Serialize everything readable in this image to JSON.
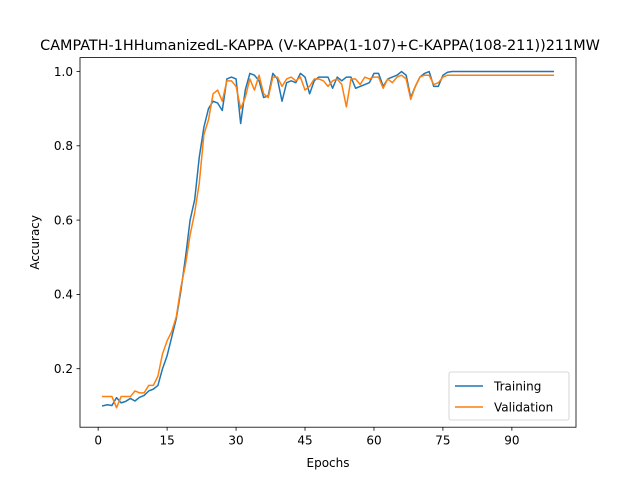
{
  "chart_data": {
    "type": "line",
    "title": "CAMPATH-1HHumanizedL-KAPPA (V-KAPPA(1-107)+C-KAPPA(108-211))211MW",
    "xlabel": "Epochs",
    "ylabel": "Accuracy",
    "xlim": [
      -3.95,
      103.95
    ],
    "ylim": [
      0.0425,
      1.0375
    ],
    "xticks": [
      0,
      15,
      30,
      45,
      60,
      75,
      90
    ],
    "yticks": [
      0.2,
      0.4,
      0.6,
      0.8,
      1.0
    ],
    "legend_position": "lower-right",
    "grid": false,
    "series": [
      {
        "name": "Training",
        "color": "#1f77b4",
        "x": [
          1,
          2,
          3,
          4,
          5,
          6,
          7,
          8,
          9,
          10,
          11,
          12,
          13,
          14,
          15,
          16,
          17,
          18,
          19,
          20,
          21,
          22,
          23,
          24,
          25,
          26,
          27,
          28,
          29,
          30,
          31,
          32,
          33,
          34,
          35,
          36,
          37,
          38,
          39,
          40,
          41,
          42,
          43,
          44,
          45,
          46,
          47,
          48,
          49,
          50,
          51,
          52,
          53,
          54,
          55,
          56,
          57,
          58,
          59,
          60,
          61,
          62,
          63,
          64,
          65,
          66,
          67,
          68,
          69,
          70,
          71,
          72,
          73,
          74,
          75,
          76,
          77,
          78,
          79,
          80,
          81,
          82,
          83,
          84,
          85,
          86,
          87,
          88,
          89,
          90,
          91,
          92,
          93,
          94,
          95,
          96,
          97,
          98,
          99
        ],
        "values": [
          0.1,
          0.103,
          0.101,
          0.122,
          0.108,
          0.112,
          0.12,
          0.113,
          0.123,
          0.128,
          0.14,
          0.145,
          0.155,
          0.2,
          0.235,
          0.285,
          0.335,
          0.41,
          0.5,
          0.6,
          0.655,
          0.77,
          0.85,
          0.9,
          0.92,
          0.915,
          0.895,
          0.98,
          0.985,
          0.98,
          0.86,
          0.95,
          0.995,
          0.99,
          0.975,
          0.93,
          0.935,
          0.995,
          0.98,
          0.92,
          0.97,
          0.975,
          0.97,
          0.995,
          0.985,
          0.94,
          0.975,
          0.985,
          0.985,
          0.985,
          0.955,
          0.985,
          0.975,
          0.985,
          0.985,
          0.955,
          0.96,
          0.965,
          0.97,
          0.995,
          0.995,
          0.96,
          0.98,
          0.985,
          0.99,
          1.0,
          0.99,
          0.93,
          0.96,
          0.985,
          0.995,
          1.0,
          0.96,
          0.96,
          0.99,
          0.998,
          1.0,
          1.0,
          1.0,
          1.0,
          1.0,
          1.0,
          1.0,
          1.0,
          1.0,
          1.0,
          1.0,
          1.0,
          1.0,
          1.0,
          1.0,
          1.0,
          1.0,
          1.0,
          1.0,
          1.0,
          1.0,
          1.0,
          1.0
        ]
      },
      {
        "name": "Validation",
        "color": "#ff7f0e",
        "x": [
          1,
          2,
          3,
          4,
          5,
          6,
          7,
          8,
          9,
          10,
          11,
          12,
          13,
          14,
          15,
          16,
          17,
          18,
          19,
          20,
          21,
          22,
          23,
          24,
          25,
          26,
          27,
          28,
          29,
          30,
          31,
          32,
          33,
          34,
          35,
          36,
          37,
          38,
          39,
          40,
          41,
          42,
          43,
          44,
          45,
          46,
          47,
          48,
          49,
          50,
          51,
          52,
          53,
          54,
          55,
          56,
          57,
          58,
          59,
          60,
          61,
          62,
          63,
          64,
          65,
          66,
          67,
          68,
          69,
          70,
          71,
          72,
          73,
          74,
          75,
          76,
          77,
          78,
          79,
          80,
          81,
          82,
          83,
          84,
          85,
          86,
          87,
          88,
          89,
          90,
          91,
          92,
          93,
          94,
          95,
          96,
          97,
          98,
          99
        ],
        "values": [
          0.125,
          0.125,
          0.125,
          0.095,
          0.125,
          0.125,
          0.125,
          0.14,
          0.135,
          0.135,
          0.155,
          0.155,
          0.18,
          0.24,
          0.275,
          0.3,
          0.34,
          0.42,
          0.48,
          0.56,
          0.62,
          0.7,
          0.83,
          0.87,
          0.94,
          0.95,
          0.92,
          0.975,
          0.975,
          0.96,
          0.9,
          0.93,
          0.98,
          0.95,
          0.99,
          0.94,
          0.93,
          0.985,
          0.985,
          0.96,
          0.98,
          0.985,
          0.975,
          0.985,
          0.95,
          0.96,
          0.98,
          0.98,
          0.975,
          0.96,
          0.975,
          0.98,
          0.965,
          0.905,
          0.98,
          0.98,
          0.965,
          0.985,
          0.98,
          0.985,
          0.985,
          0.955,
          0.98,
          0.97,
          0.985,
          0.99,
          0.98,
          0.925,
          0.96,
          0.985,
          0.99,
          0.99,
          0.965,
          0.97,
          0.985,
          0.99,
          0.99,
          0.99,
          0.99,
          0.99,
          0.99,
          0.99,
          0.99,
          0.99,
          0.99,
          0.99,
          0.99,
          0.99,
          0.99,
          0.99,
          0.99,
          0.99,
          0.99,
          0.99,
          0.99,
          0.99,
          0.99,
          0.99,
          0.99
        ]
      }
    ]
  }
}
